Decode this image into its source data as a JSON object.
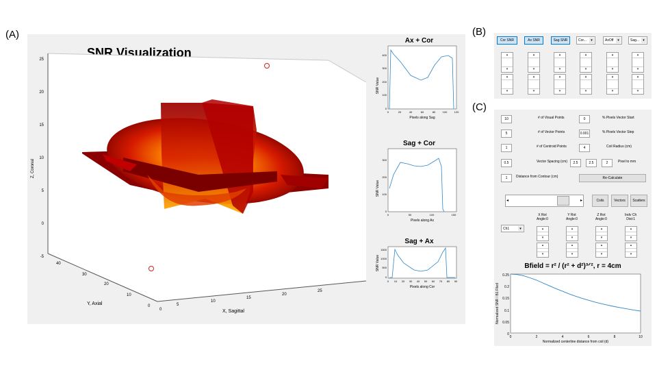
{
  "panel_labels": {
    "a": "(A)",
    "b": "(B)",
    "c": "(C)"
  },
  "colors": {
    "curve": "#2e86c9",
    "panel_bg": "#f0f0f0",
    "button_selected": "#cce4f7",
    "surface_red": "#c00000"
  },
  "main_plot": {
    "title": "SNR Visualization",
    "zlabel": "Z, Coronal",
    "ylabel": "Y, Axial",
    "xlabel": "X, Sagittal",
    "z_ticks": [
      "25",
      "20",
      "15",
      "10",
      "5",
      "0",
      "-5"
    ],
    "y_ticks": [
      "40",
      "30",
      "20",
      "10",
      "0"
    ],
    "x_ticks": [
      "0",
      "5",
      "10",
      "15",
      "20",
      "25"
    ]
  },
  "mini_plots": [
    {
      "title": "Ax + Cor",
      "xlabel": "Pixels along Sag",
      "ylabel": "SNR Value",
      "x_ticks": [
        "0",
        "20",
        "40",
        "60",
        "80",
        "100",
        "120"
      ],
      "y_ticks": [
        "400",
        "300",
        "200",
        "100",
        "0"
      ]
    },
    {
      "title": "Sag + Cor",
      "xlabel": "Pixels along Ax",
      "ylabel": "SNR Value",
      "x_ticks": [
        "0",
        "50",
        "100",
        "150"
      ],
      "y_ticks": [
        "300",
        "200",
        "100",
        "0"
      ]
    },
    {
      "title": "Sag + Ax",
      "xlabel": "Pixels along Cor",
      "ylabel": "SNR Value",
      "x_ticks": [
        "0",
        "10",
        "20",
        "30",
        "40",
        "50",
        "60",
        "70",
        "80",
        "90"
      ],
      "y_ticks": [
        "1500",
        "1000",
        "500",
        "0"
      ]
    }
  ],
  "panel_b": {
    "buttons": [
      "Cor SNR",
      "Ax SNR",
      "Sag SNR"
    ],
    "dropdowns": [
      "Cor...",
      "AxOff",
      "Sag..."
    ]
  },
  "panel_c": {
    "left_fields": [
      {
        "value": "10",
        "label": "# of Visual Points"
      },
      {
        "value": "5",
        "label": "# of Vector Points"
      },
      {
        "value": "1",
        "label": "# of Centroid Points"
      },
      {
        "value": "0.5",
        "label": "Vector Spacing (cm)"
      },
      {
        "value": "1",
        "label": "Distance from Contour (cm)"
      }
    ],
    "right_fields": [
      {
        "value": "0",
        "label": "% Pixels Vector Start"
      },
      {
        "value": "0.001",
        "label": "% Pixels Vector Step"
      },
      {
        "value": "4",
        "label": "Coil Radius (cm)"
      }
    ],
    "triple_values": [
      "2.5",
      "2.5",
      "2"
    ],
    "pixel_to_mm": "Pixel to mm",
    "recalc": "Re-Calculate",
    "toggle_buttons": [
      "Coils",
      "Vectors",
      "Scatters"
    ],
    "channel_select": "Ch1",
    "rotation_labels": [
      {
        "line1": "X Rot",
        "line2": "Angle:0"
      },
      {
        "line1": "Y Rot",
        "line2": "Angle:0"
      },
      {
        "line1": "Z Rot",
        "line2": "Angle:0"
      },
      {
        "line1": "Indv Ch",
        "line2": "Dist:1"
      }
    ]
  },
  "bfield_chart": {
    "title": "Bfield = r² / (r² + d²)³ᐟ², r = 4cm",
    "xlabel": "Normalized centerline distance from coil (d)",
    "ylabel": "Normalized SNR / B1 Filed",
    "x_ticks": [
      "0",
      "2",
      "4",
      "6",
      "8",
      "10"
    ],
    "y_ticks": [
      "0.25",
      "0.2",
      "0.15",
      "0.1",
      "0.05",
      "0"
    ]
  },
  "chart_data": {
    "type": "line",
    "title": "Bfield = r^2 / (r^2 + d^2)^(3/2), r = 4cm",
    "xlabel": "Normalized centerline distance from coil (d)",
    "ylabel": "Normalized SNR / B1 Filed",
    "x": [
      0,
      0.5,
      1,
      1.5,
      2,
      2.5,
      3,
      3.5,
      4,
      4.5,
      5,
      5.5,
      6,
      6.5,
      7,
      7.5,
      8,
      8.5,
      9,
      9.5,
      10
    ],
    "values": [
      0.25,
      0.248,
      0.243,
      0.234,
      0.224,
      0.212,
      0.2,
      0.188,
      0.177,
      0.166,
      0.156,
      0.147,
      0.139,
      0.131,
      0.124,
      0.118,
      0.112,
      0.107,
      0.102,
      0.097,
      0.093
    ],
    "xlim": [
      0,
      10
    ],
    "ylim": [
      0,
      0.25
    ]
  }
}
